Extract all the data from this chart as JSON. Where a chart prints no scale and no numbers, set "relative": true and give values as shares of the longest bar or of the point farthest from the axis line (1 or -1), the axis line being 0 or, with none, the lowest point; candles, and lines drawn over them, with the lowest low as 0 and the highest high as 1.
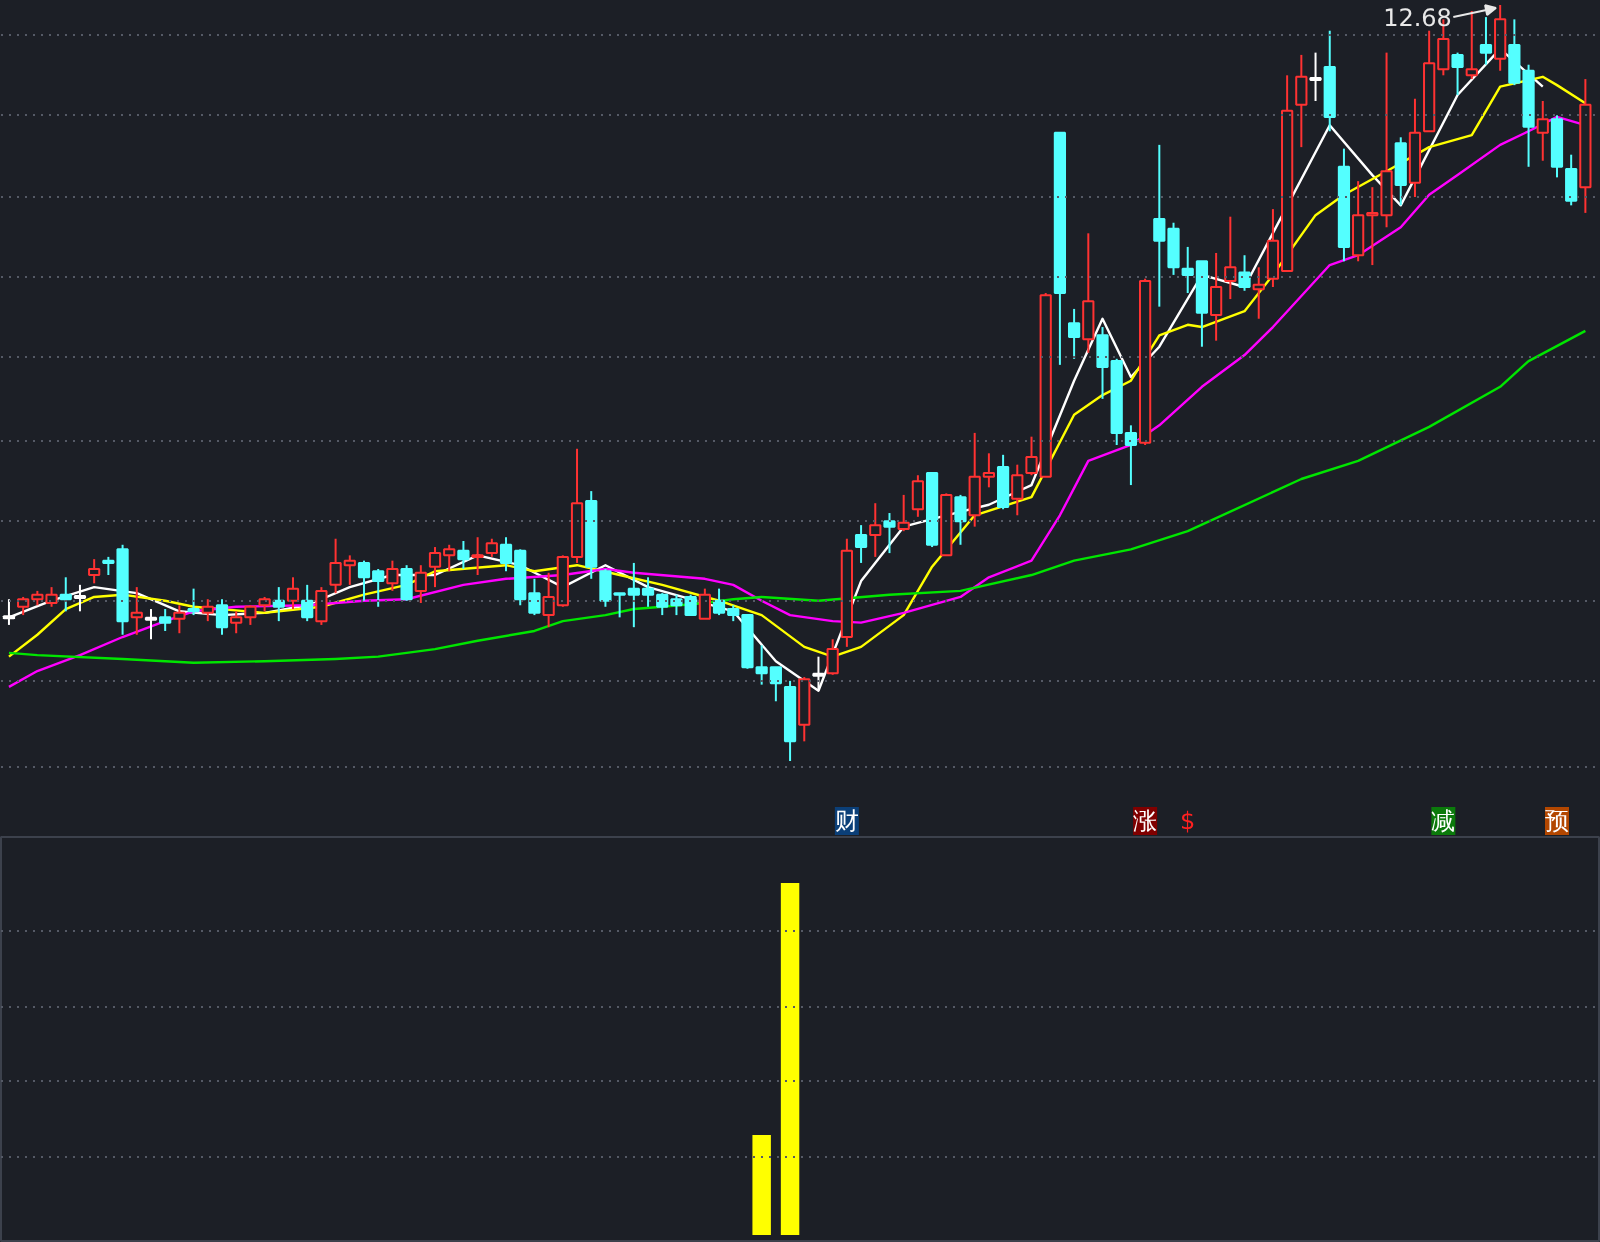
{
  "chart_data": [
    {
      "type": "candlestick",
      "relative": true,
      "grid": "y",
      "categories": [
        null,
        null,
        null,
        null,
        null,
        null,
        null,
        null,
        null,
        null,
        null,
        null,
        null,
        null,
        null,
        null,
        null,
        null,
        null,
        null,
        null,
        null,
        null,
        null,
        null,
        null,
        null,
        null,
        null,
        null,
        null,
        null,
        null,
        null,
        null,
        null,
        null,
        null,
        null,
        null,
        null,
        null,
        null,
        null,
        null,
        null,
        null,
        null,
        null,
        null,
        null,
        null,
        null,
        null,
        null,
        null,
        null,
        null,
        null,
        null,
        null,
        null,
        null,
        null,
        null,
        null,
        null,
        null,
        null,
        null,
        null,
        null,
        null,
        null,
        null,
        null,
        null,
        null,
        null,
        null,
        null,
        null,
        null,
        null,
        null,
        null,
        null,
        null,
        null,
        null,
        null,
        null,
        null,
        null,
        null,
        null,
        null,
        null,
        null,
        null,
        null,
        null,
        null,
        null,
        null,
        null,
        null,
        null,
        null,
        null,
        null,
        null
      ],
      "ohlc": [
        [
          0.19,
          0.214,
          0.18,
          0.19
        ],
        [
          0.204,
          0.217,
          0.193,
          0.214
        ],
        [
          0.214,
          0.225,
          0.206,
          0.22
        ],
        [
          0.209,
          0.23,
          0.204,
          0.22
        ],
        [
          0.22,
          0.243,
          0.198,
          0.214
        ],
        [
          0.217,
          0.233,
          0.198,
          0.217
        ],
        [
          0.246,
          0.267,
          0.235,
          0.254
        ],
        [
          0.265,
          0.27,
          0.246,
          0.262
        ],
        [
          0.28,
          0.286,
          0.167,
          0.185
        ],
        [
          0.19,
          0.23,
          0.167,
          0.196
        ],
        [
          0.188,
          0.201,
          0.161,
          0.188
        ],
        [
          0.19,
          0.201,
          0.172,
          0.183
        ],
        [
          0.188,
          0.206,
          0.169,
          0.196
        ],
        [
          0.201,
          0.228,
          0.193,
          0.198
        ],
        [
          0.196,
          0.214,
          0.185,
          0.204
        ],
        [
          0.206,
          0.214,
          0.167,
          0.177
        ],
        [
          0.183,
          0.198,
          0.169,
          0.19
        ],
        [
          0.19,
          0.206,
          0.18,
          0.204
        ],
        [
          0.206,
          0.217,
          0.198,
          0.214
        ],
        [
          0.212,
          0.23,
          0.185,
          0.204
        ],
        [
          0.212,
          0.243,
          0.201,
          0.228
        ],
        [
          0.212,
          0.233,
          0.185,
          0.19
        ],
        [
          0.185,
          0.23,
          0.18,
          0.225
        ],
        [
          0.233,
          0.294,
          0.222,
          0.262
        ],
        [
          0.259,
          0.272,
          0.233,
          0.265
        ],
        [
          0.262,
          0.265,
          0.212,
          0.243
        ],
        [
          0.251,
          0.254,
          0.204,
          0.238
        ],
        [
          0.235,
          0.265,
          0.225,
          0.254
        ],
        [
          0.254,
          0.259,
          0.212,
          0.214
        ],
        [
          0.225,
          0.259,
          0.209,
          0.249
        ],
        [
          0.257,
          0.283,
          0.23,
          0.275
        ],
        [
          0.272,
          0.286,
          0.251,
          0.28
        ],
        [
          0.278,
          0.291,
          0.254,
          0.267
        ],
        [
          0.27,
          0.296,
          0.246,
          0.272
        ],
        [
          0.275,
          0.294,
          0.27,
          0.288
        ],
        [
          0.286,
          0.296,
          0.251,
          0.262
        ],
        [
          0.278,
          0.28,
          0.206,
          0.214
        ],
        [
          0.222,
          0.241,
          0.193,
          0.196
        ],
        [
          0.193,
          0.249,
          0.177,
          0.217
        ],
        [
          0.206,
          0.272,
          0.204,
          0.27
        ],
        [
          0.27,
          0.413,
          0.262,
          0.341
        ],
        [
          0.344,
          0.357,
          0.241,
          0.257
        ],
        [
          0.251,
          0.254,
          0.204,
          0.212
        ],
        [
          0.222,
          0.222,
          0.19,
          0.22
        ],
        [
          0.228,
          0.262,
          0.177,
          0.22
        ],
        [
          0.228,
          0.243,
          0.204,
          0.22
        ],
        [
          0.22,
          0.222,
          0.193,
          0.204
        ],
        [
          0.214,
          0.22,
          0.193,
          0.206
        ],
        [
          0.217,
          0.22,
          0.193,
          0.193
        ],
        [
          0.188,
          0.228,
          0.188,
          0.22
        ],
        [
          0.212,
          0.228,
          0.193,
          0.196
        ],
        [
          0.201,
          0.206,
          0.185,
          0.193
        ],
        [
          0.193,
          0.193,
          0.122,
          0.124
        ],
        [
          0.124,
          0.153,
          0.101,
          0.116
        ],
        [
          0.124,
          0.124,
          0.079,
          0.103
        ],
        [
          0.098,
          0.106,
          0,
          0.026
        ],
        [
          0.048,
          0.111,
          0.026,
          0.108
        ],
        [
          0.114,
          0.138,
          0.093,
          0.114
        ],
        [
          0.116,
          0.161,
          0.114,
          0.148
        ],
        [
          0.164,
          0.294,
          0.151,
          0.278
        ],
        [
          0.299,
          0.312,
          0.262,
          0.283
        ],
        [
          0.299,
          0.341,
          0.27,
          0.312
        ],
        [
          0.317,
          0.328,
          0.275,
          0.31
        ],
        [
          0.307,
          0.352,
          0.304,
          0.315
        ],
        [
          0.333,
          0.378,
          0.323,
          0.37
        ],
        [
          0.381,
          0.381,
          0.283,
          0.286
        ],
        [
          0.272,
          0.354,
          0.272,
          0.352
        ],
        [
          0.349,
          0.352,
          0.286,
          0.317
        ],
        [
          0.325,
          0.434,
          0.31,
          0.376
        ],
        [
          0.376,
          0.407,
          0.362,
          0.381
        ],
        [
          0.389,
          0.405,
          0.333,
          0.336
        ],
        [
          0.347,
          0.392,
          0.325,
          0.378
        ],
        [
          0.381,
          0.429,
          0.378,
          0.402
        ],
        [
          0.376,
          0.619,
          0.376,
          0.616
        ],
        [
          0.831,
          0.831,
          0.524,
          0.619
        ],
        [
          0.579,
          0.598,
          0.532,
          0.561
        ],
        [
          0.558,
          0.698,
          0.54,
          0.608
        ],
        [
          0.563,
          0.574,
          0.479,
          0.521
        ],
        [
          0.529,
          0.532,
          0.418,
          0.434
        ],
        [
          0.434,
          0.444,
          0.365,
          0.418
        ],
        [
          0.421,
          0.638,
          0.418,
          0.635
        ],
        [
          0.717,
          0.815,
          0.601,
          0.688
        ],
        [
          0.704,
          0.712,
          0.643,
          0.653
        ],
        [
          0.651,
          0.68,
          0.619,
          0.643
        ],
        [
          0.661,
          0.661,
          0.548,
          0.593
        ],
        [
          0.59,
          0.672,
          0.556,
          0.627
        ],
        [
          0.635,
          0.72,
          0.611,
          0.653
        ],
        [
          0.646,
          0.669,
          0.622,
          0.627
        ],
        [
          0.624,
          0.653,
          0.585,
          0.63
        ],
        [
          0.638,
          0.73,
          0.627,
          0.688
        ],
        [
          0.648,
          0.907,
          0.648,
          0.86
        ],
        [
          0.868,
          0.934,
          0.812,
          0.905
        ],
        [
          0.902,
          0.937,
          0.873,
          0.902
        ],
        [
          0.918,
          0.966,
          0.833,
          0.852
        ],
        [
          0.786,
          0.81,
          0.661,
          0.68
        ],
        [
          0.669,
          0.767,
          0.661,
          0.722
        ],
        [
          0.722,
          0.759,
          0.656,
          0.725
        ],
        [
          0.722,
          0.937,
          0.706,
          0.78
        ],
        [
          0.817,
          0.825,
          0.735,
          0.762
        ],
        [
          0.765,
          0.876,
          0.746,
          0.831
        ],
        [
          0.833,
          0.966,
          0.833,
          0.923
        ],
        [
          0.915,
          0.981,
          0.907,
          0.955
        ],
        [
          0.934,
          0.937,
          0.881,
          0.918
        ],
        [
          0.907,
          0.992,
          0.902,
          0.915
        ],
        [
          0.947,
          0.984,
          0.921,
          0.937
        ],
        [
          0.929,
          1,
          0.913,
          0.981
        ],
        [
          0.947,
          0.981,
          0.894,
          0.897
        ],
        [
          0.913,
          0.921,
          0.786,
          0.839
        ],
        [
          0.831,
          0.873,
          0.794,
          0.849
        ],
        [
          0.849,
          0.854,
          0.772,
          0.786
        ],
        [
          0.783,
          0.802,
          0.735,
          0.741
        ],
        [
          0.759,
          0.902,
          0.725,
          0.868
        ]
      ],
      "colors": [
        "#ffffff",
        "#ff3232",
        "#ff3232",
        "#ff3232",
        "#54ffff",
        "#ffffff",
        "#ff3232",
        "#54ffff",
        "#54ffff",
        "#ff3232",
        "#ffffff",
        "#54ffff",
        "#ff3232",
        "#54ffff",
        "#ff3232",
        "#54ffff",
        "#ff3232",
        "#ff3232",
        "#ff3232",
        "#54ffff",
        "#ff3232",
        "#54ffff",
        "#ff3232",
        "#ff3232",
        "#ff3232",
        "#54ffff",
        "#54ffff",
        "#ff3232",
        "#54ffff",
        "#ff3232",
        "#ff3232",
        "#ff3232",
        "#54ffff",
        "#ff3232",
        "#ff3232",
        "#54ffff",
        "#54ffff",
        "#54ffff",
        "#ff3232",
        "#ff3232",
        "#ff3232",
        "#54ffff",
        "#54ffff",
        "#54ffff",
        "#54ffff",
        "#54ffff",
        "#54ffff",
        "#54ffff",
        "#54ffff",
        "#ff3232",
        "#54ffff",
        "#54ffff",
        "#54ffff",
        "#54ffff",
        "#54ffff",
        "#54ffff",
        "#ff3232",
        "#ffffff",
        "#ff3232",
        "#ff3232",
        "#54ffff",
        "#ff3232",
        "#54ffff",
        "#ff3232",
        "#ff3232",
        "#54ffff",
        "#ff3232",
        "#54ffff",
        "#ff3232",
        "#ff3232",
        "#54ffff",
        "#ff3232",
        "#ff3232",
        "#ff3232",
        "#54ffff",
        "#54ffff",
        "#ff3232",
        "#54ffff",
        "#54ffff",
        "#54ffff",
        "#ff3232",
        "#54ffff",
        "#54ffff",
        "#54ffff",
        "#54ffff",
        "#ff3232",
        "#ff3232",
        "#54ffff",
        "#ff3232",
        "#ff3232",
        "#ff3232",
        "#ff3232",
        "#ffffff",
        "#54ffff",
        "#54ffff",
        "#ff3232",
        "#ff3232",
        "#ff3232",
        "#54ffff",
        "#ff3232",
        "#ff3232",
        "#ff3232",
        "#54ffff",
        "#ff3232",
        "#54ffff",
        "#ff3232",
        "#54ffff",
        "#54ffff",
        "#ff3232",
        "#54ffff",
        "#54ffff",
        "#ff3232"
      ],
      "series": [
        {
          "type": "line",
          "color": "#ffffff",
          "values": [
            0.19,
            null,
            null,
            0.212,
            null,
            null,
            0.23,
            null,
            null,
            0.222,
            null,
            null,
            0.198,
            null,
            null,
            0.193,
            null,
            null,
            0.196,
            null,
            null,
            0.206,
            null,
            null,
            0.23,
            null,
            null,
            0.246,
            null,
            null,
            0.246,
            null,
            null,
            0.272,
            null,
            null,
            0.259,
            null,
            null,
            0.23,
            null,
            null,
            0.259,
            null,
            null,
            0.23,
            null,
            null,
            0.214,
            null,
            null,
            0.198,
            null,
            null,
            0.132,
            null,
            null,
            0.093,
            null,
            null,
            0.238,
            null,
            null,
            0.31,
            null,
            null,
            0.325,
            null,
            null,
            0.339,
            null,
            null,
            0.365,
            null,
            null,
            0.503,
            null,
            0.585,
            null,
            0.508,
            null,
            0.548,
            null,
            null,
            0.643,
            null,
            null,
            0.627,
            null,
            null,
            null,
            null,
            null,
            0.841,
            null,
            null,
            0.775,
            null,
            0.735,
            null,
            null,
            null,
            0.881,
            null,
            null,
            0.942,
            null,
            null,
            0.892,
            null,
            null,
            null
          ]
        },
        {
          "type": "line",
          "color": "#ffff00",
          "values": [
            0.138,
            null,
            0.167,
            null,
            0.201,
            null,
            0.217,
            null,
            0.22,
            null,
            null,
            0.212,
            null,
            0.204,
            null,
            null,
            null,
            null,
            0.196,
            null,
            null,
            null,
            0.204,
            null,
            null,
            0.22,
            null,
            null,
            0.233,
            null,
            0.251,
            null,
            null,
            null,
            null,
            0.259,
            null,
            0.251,
            null,
            null,
            0.259,
            null,
            null,
            0.246,
            null,
            null,
            0.233,
            null,
            null,
            null,
            0.212,
            null,
            null,
            0.193,
            null,
            null,
            0.151,
            null,
            0.138,
            null,
            0.151,
            null,
            null,
            0.193,
            null,
            0.257,
            null,
            null,
            0.325,
            null,
            null,
            null,
            0.349,
            null,
            null,
            0.458,
            null,
            0.484,
            null,
            0.503,
            null,
            0.563,
            null,
            0.577,
            0.574,
            null,
            null,
            0.595,
            null,
            0.643,
            null,
            null,
            0.722,
            null,
            0.749,
            null,
            null,
            0.78,
            null,
            null,
            0.812,
            null,
            null,
            0.828,
            null,
            0.892,
            null,
            null,
            0.905,
            0.894,
            null,
            0.87
          ]
        },
        {
          "type": "line",
          "color": "#ff00ff",
          "values": [
            0.098,
            null,
            0.119,
            null,
            null,
            0.14,
            null,
            null,
            0.164,
            null,
            null,
            0.185,
            null,
            0.198,
            null,
            null,
            0.204,
            null,
            null,
            null,
            null,
            0.206,
            null,
            null,
            null,
            0.212,
            null,
            null,
            0.214,
            null,
            null,
            null,
            0.233,
            null,
            null,
            0.241,
            null,
            null,
            null,
            0.246,
            null,
            null,
            0.254,
            null,
            0.249,
            null,
            null,
            null,
            null,
            0.241,
            null,
            0.233,
            null,
            0.212,
            null,
            0.193,
            null,
            null,
            0.185,
            null,
            0.183,
            null,
            null,
            0.196,
            null,
            null,
            null,
            0.217,
            null,
            0.243,
            null,
            null,
            0.265,
            null,
            0.325,
            null,
            0.397,
            null,
            null,
            0.418,
            null,
            0.444,
            null,
            null,
            0.495,
            null,
            null,
            0.537,
            null,
            0.574,
            null,
            null,
            null,
            0.656,
            null,
            0.669,
            null,
            null,
            0.706,
            null,
            0.749,
            null,
            0.775,
            null,
            null,
            0.815,
            null,
            0.833,
            null,
            0.852,
            null,
            0.841
          ]
        },
        {
          "type": "line",
          "color": "#00e600",
          "values": [
            0.143,
            null,
            0.14,
            null,
            null,
            null,
            null,
            null,
            0.135,
            null,
            null,
            0.132,
            null,
            0.13,
            null,
            null,
            null,
            null,
            0.132,
            null,
            null,
            null,
            null,
            0.135,
            null,
            null,
            0.138,
            null,
            null,
            null,
            0.148,
            null,
            null,
            0.159,
            null,
            null,
            null,
            0.172,
            null,
            0.185,
            null,
            null,
            0.193,
            null,
            0.201,
            null,
            0.204,
            null,
            null,
            0.209,
            null,
            0.214,
            null,
            0.217,
            null,
            null,
            null,
            0.212,
            null,
            null,
            null,
            null,
            0.22,
            null,
            null,
            null,
            null,
            0.225,
            null,
            null,
            null,
            null,
            0.246,
            null,
            null,
            0.265,
            null,
            null,
            null,
            0.28,
            null,
            null,
            null,
            0.304,
            null,
            null,
            null,
            null,
            null,
            null,
            null,
            0.373,
            null,
            null,
            null,
            0.397,
            null,
            null,
            null,
            null,
            0.442,
            null,
            null,
            null,
            null,
            0.495,
            null,
            0.529,
            null,
            null,
            null,
            0.569
          ]
        }
      ],
      "annotations": [
        "12.68",
        "财",
        "涨",
        "$",
        "减",
        "预"
      ]
    },
    {
      "type": "bar",
      "relative": true,
      "grid": "y",
      "color": "#ffff00",
      "categories": [
        null,
        null,
        null,
        null,
        null,
        null,
        null,
        null,
        null,
        null,
        null,
        null,
        null,
        null,
        null,
        null,
        null,
        null,
        null,
        null,
        null,
        null,
        null,
        null,
        null,
        null,
        null,
        null,
        null,
        null,
        null,
        null,
        null,
        null,
        null,
        null,
        null,
        null,
        null,
        null,
        null,
        null,
        null,
        null,
        null,
        null,
        null,
        null,
        null,
        null,
        null,
        null,
        null,
        null,
        null,
        null,
        null,
        null,
        null,
        null,
        null,
        null,
        null,
        null,
        null,
        null,
        null,
        null,
        null,
        null,
        null,
        null,
        null,
        null,
        null,
        null,
        null,
        null,
        null,
        null,
        null,
        null,
        null,
        null,
        null,
        null,
        null,
        null,
        null,
        null,
        null,
        null,
        null,
        null,
        null,
        null,
        null,
        null,
        null,
        null,
        null,
        null,
        null,
        null,
        null,
        null,
        null,
        null,
        null,
        null,
        null,
        null
      ],
      "values": [
        null,
        null,
        null,
        null,
        null,
        null,
        null,
        null,
        null,
        null,
        null,
        null,
        null,
        null,
        null,
        null,
        null,
        null,
        null,
        null,
        null,
        null,
        null,
        null,
        null,
        null,
        null,
        null,
        null,
        null,
        null,
        null,
        null,
        null,
        null,
        null,
        null,
        null,
        null,
        null,
        null,
        null,
        null,
        null,
        null,
        null,
        null,
        null,
        null,
        null,
        null,
        null,
        null,
        0.284,
        null,
        1,
        null,
        null,
        null,
        null,
        null,
        null,
        null,
        null,
        null,
        null,
        null,
        null,
        null,
        null,
        null,
        null,
        null,
        null,
        null,
        null,
        null,
        null,
        null,
        null,
        null,
        null,
        null,
        null,
        null,
        null,
        null,
        null,
        null,
        null,
        null,
        null,
        null,
        null,
        null,
        null,
        null,
        null,
        null,
        null,
        null,
        null,
        null,
        null,
        null,
        null,
        null,
        null,
        null,
        null,
        null,
        null
      ]
    }
  ]
}
